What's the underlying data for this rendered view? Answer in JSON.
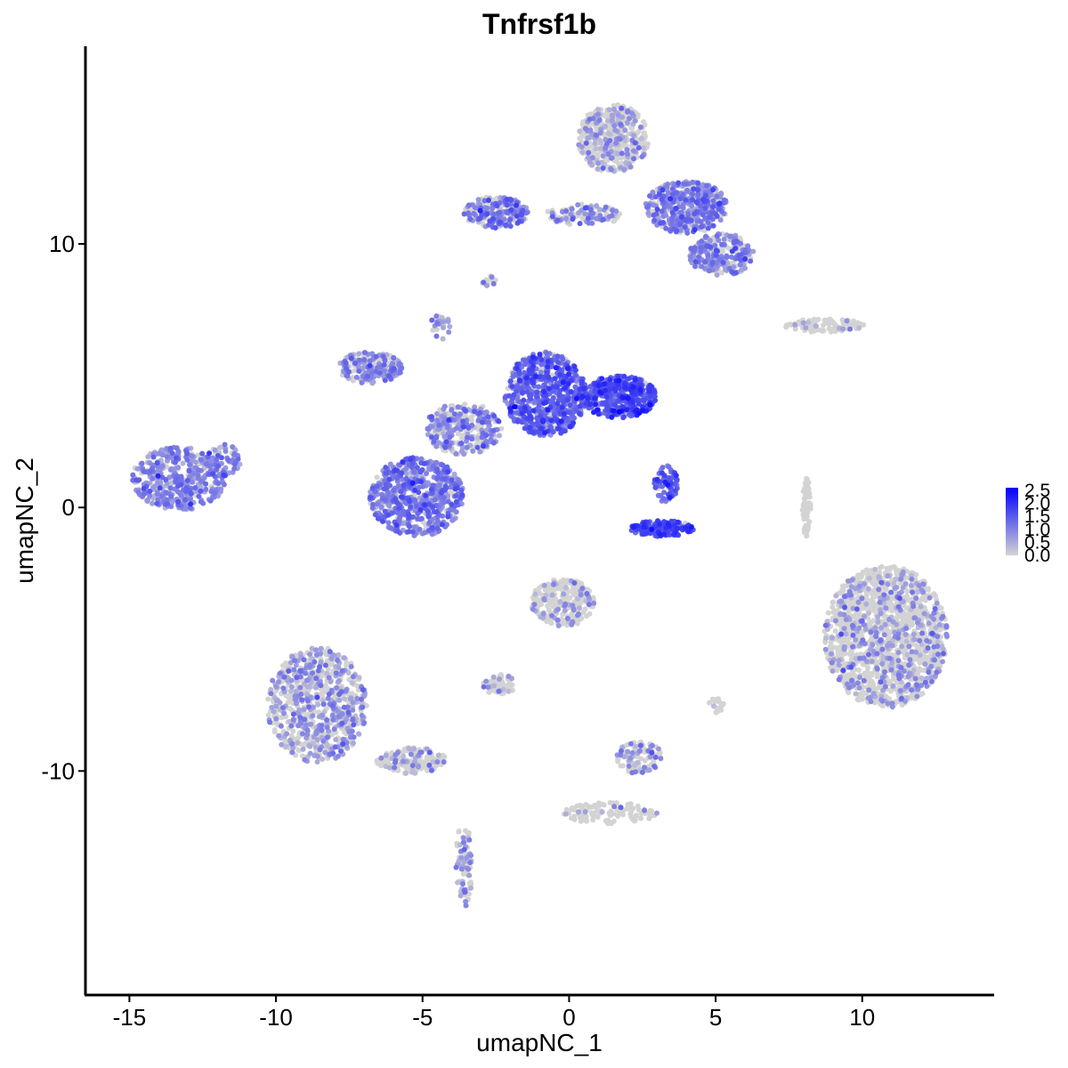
{
  "chart_data": {
    "type": "scatter",
    "title": "Tnfrsf1b",
    "xlabel": "umapNC_1",
    "ylabel": "umapNC_2",
    "xlim": [
      -16.5,
      14.5
    ],
    "ylim": [
      -18.5,
      17.5
    ],
    "x_ticks": [
      -15,
      -10,
      -5,
      0,
      5,
      10
    ],
    "x_tick_labels": [
      "-15",
      "-10",
      "-5",
      "0",
      "5",
      "10"
    ],
    "y_ticks": [
      -10,
      0,
      10
    ],
    "y_tick_labels": [
      "-10",
      "0",
      "10"
    ],
    "grid": false,
    "legend": {
      "placement": "right",
      "type": "colorbar",
      "min": 0,
      "max": 2.6,
      "low_color": "#d3d3d3",
      "high_color": "#0000ff",
      "ticks": [
        0.0,
        0.5,
        1.0,
        1.5,
        2.0,
        2.5
      ],
      "tick_labels": [
        "0.0",
        "0.5",
        "1.0",
        "1.5",
        "2.0",
        "2.5"
      ]
    },
    "clusters": [
      {
        "name": "left-blob",
        "cx": -13.3,
        "cy": 1.1,
        "rx": 1.6,
        "ry": 1.2,
        "n": 450,
        "expr_frac": 0.85,
        "expr_mean": 0.8
      },
      {
        "name": "left-blob-tail",
        "cx": -11.8,
        "cy": 1.8,
        "rx": 0.6,
        "ry": 0.6,
        "n": 60,
        "expr_frac": 0.8,
        "expr_mean": 0.8
      },
      {
        "name": "center-bottom-lobe",
        "cx": -5.2,
        "cy": 0.4,
        "rx": 1.6,
        "ry": 1.5,
        "n": 650,
        "expr_frac": 0.85,
        "expr_mean": 1.0
      },
      {
        "name": "center-left-arm",
        "cx": -6.8,
        "cy": 5.3,
        "rx": 1.1,
        "ry": 0.6,
        "n": 200,
        "expr_frac": 0.6,
        "expr_mean": 0.8
      },
      {
        "name": "center-middle",
        "cx": -3.6,
        "cy": 3.0,
        "rx": 1.3,
        "ry": 1.0,
        "n": 300,
        "expr_frac": 0.55,
        "expr_mean": 0.9
      },
      {
        "name": "center-hub",
        "cx": -0.8,
        "cy": 4.3,
        "rx": 1.4,
        "ry": 1.6,
        "n": 650,
        "expr_frac": 0.9,
        "expr_mean": 1.3
      },
      {
        "name": "center-right-arm",
        "cx": 1.7,
        "cy": 4.2,
        "rx": 1.3,
        "ry": 0.8,
        "n": 450,
        "expr_frac": 0.9,
        "expr_mean": 1.5
      },
      {
        "name": "small-cluster-upper",
        "cx": 3.3,
        "cy": 0.9,
        "rx": 0.4,
        "ry": 0.7,
        "n": 80,
        "expr_frac": 0.85,
        "expr_mean": 1.3
      },
      {
        "name": "small-cluster-arc",
        "cx": 3.2,
        "cy": -0.8,
        "rx": 1.1,
        "ry": 0.3,
        "n": 150,
        "expr_frac": 0.95,
        "expr_mean": 1.6
      },
      {
        "name": "top-right-upper",
        "cx": 1.5,
        "cy": 14.0,
        "rx": 1.2,
        "ry": 1.3,
        "n": 500,
        "expr_frac": 0.3,
        "expr_mean": 0.7
      },
      {
        "name": "top-right-body",
        "cx": 4.0,
        "cy": 11.4,
        "rx": 1.4,
        "ry": 1.0,
        "n": 450,
        "expr_frac": 0.7,
        "expr_mean": 1.0
      },
      {
        "name": "top-right-lower",
        "cx": 5.2,
        "cy": 9.6,
        "rx": 1.1,
        "ry": 0.8,
        "n": 250,
        "expr_frac": 0.6,
        "expr_mean": 0.9
      },
      {
        "name": "top-left-arm",
        "cx": -2.5,
        "cy": 11.2,
        "rx": 1.1,
        "ry": 0.6,
        "n": 220,
        "expr_frac": 0.65,
        "expr_mean": 1.0
      },
      {
        "name": "top-bridge",
        "cx": 0.5,
        "cy": 11.1,
        "rx": 1.3,
        "ry": 0.4,
        "n": 120,
        "expr_frac": 0.5,
        "expr_mean": 0.9
      },
      {
        "name": "right-strip",
        "cx": 8.7,
        "cy": 6.9,
        "rx": 1.4,
        "ry": 0.25,
        "n": 100,
        "expr_frac": 0.15,
        "expr_mean": 0.6
      },
      {
        "name": "right-vertical-strand",
        "cx": 8.1,
        "cy": 0.0,
        "rx": 0.15,
        "ry": 1.1,
        "n": 60,
        "expr_frac": 0.02,
        "expr_mean": 0.5
      },
      {
        "name": "right-large-blob",
        "cx": 10.8,
        "cy": -4.9,
        "rx": 2.1,
        "ry": 2.7,
        "n": 1400,
        "expr_frac": 0.25,
        "expr_mean": 0.7
      },
      {
        "name": "bottom-left-blob",
        "cx": -8.6,
        "cy": -7.5,
        "rx": 1.7,
        "ry": 2.2,
        "n": 800,
        "expr_frac": 0.45,
        "expr_mean": 0.7
      },
      {
        "name": "bottom-left-tail",
        "cx": -5.4,
        "cy": -9.6,
        "rx": 1.2,
        "ry": 0.5,
        "n": 160,
        "expr_frac": 0.25,
        "expr_mean": 0.6
      },
      {
        "name": "bottom-left-strand",
        "cx": -3.6,
        "cy": -13.6,
        "rx": 0.3,
        "ry": 1.6,
        "n": 80,
        "expr_frac": 0.4,
        "expr_mean": 0.7
      },
      {
        "name": "bottom-center-top",
        "cx": -0.2,
        "cy": -3.6,
        "rx": 1.1,
        "ry": 0.9,
        "n": 260,
        "expr_frac": 0.2,
        "expr_mean": 0.7
      },
      {
        "name": "bottom-center-arm",
        "cx": -2.4,
        "cy": -6.7,
        "rx": 0.6,
        "ry": 0.4,
        "n": 60,
        "expr_frac": 0.15,
        "expr_mean": 0.6
      },
      {
        "name": "bottom-center-small",
        "cx": 2.4,
        "cy": -9.5,
        "rx": 0.8,
        "ry": 0.6,
        "n": 110,
        "expr_frac": 0.35,
        "expr_mean": 0.7
      },
      {
        "name": "bottom-branch",
        "cx": 1.4,
        "cy": -11.6,
        "rx": 1.6,
        "ry": 0.4,
        "n": 110,
        "expr_frac": 0.05,
        "expr_mean": 0.5
      },
      {
        "name": "mid-right-dots",
        "cx": 5.0,
        "cy": -7.5,
        "rx": 0.3,
        "ry": 0.3,
        "n": 20,
        "expr_frac": 0.2,
        "expr_mean": 0.6
      },
      {
        "name": "upper-tiny-left",
        "cx": -2.8,
        "cy": 8.6,
        "rx": 0.3,
        "ry": 0.2,
        "n": 12,
        "expr_frac": 0.6,
        "expr_mean": 0.8
      },
      {
        "name": "center-spike",
        "cx": -4.4,
        "cy": 6.8,
        "rx": 0.4,
        "ry": 0.5,
        "n": 25,
        "expr_frac": 0.5,
        "expr_mean": 0.8
      }
    ]
  }
}
